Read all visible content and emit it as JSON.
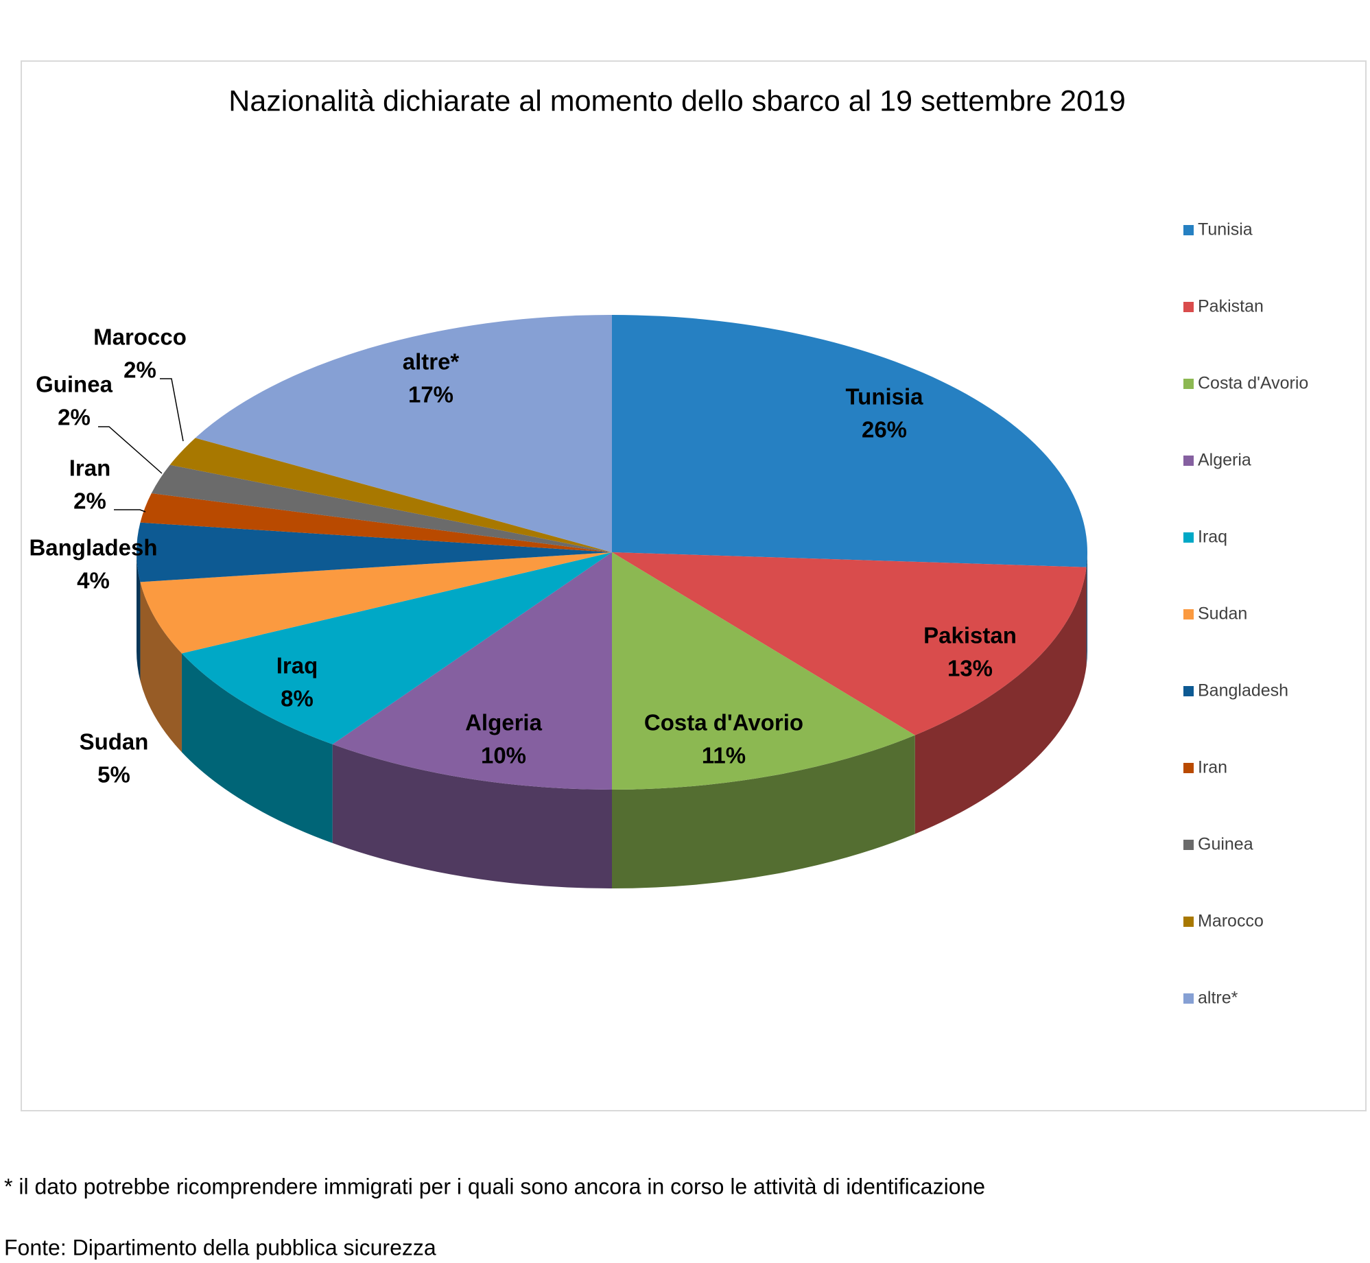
{
  "chart_data": {
    "type": "pie3d",
    "title": "Nazionalità dichiarate al momento dello sbarco al 19 settembre 2019",
    "categories": [
      "Tunisia",
      "Pakistan",
      "Costa d'Avorio",
      "Algeria",
      "Iraq",
      "Sudan",
      "Bangladesh",
      "Iran",
      "Guinea",
      "Marocco",
      "altre*"
    ],
    "values": [
      26,
      13,
      11,
      10,
      8,
      5,
      4,
      2,
      2,
      2,
      17
    ],
    "value_labels": [
      "26%",
      "13%",
      "11%",
      "10%",
      "8%",
      "5%",
      "4%",
      "2%",
      "2%",
      "2%",
      "17%"
    ],
    "colors": [
      "#2680c2",
      "#d94c4c",
      "#8cb852",
      "#8560a0",
      "#00a8c6",
      "#fb9a40",
      "#0d5a93",
      "#b94a00",
      "#6b6b6b",
      "#a87800",
      "#86a0d4"
    ],
    "legend": "right",
    "note": "* il dato potrebbe ricomprendere immigrati per i quali sono ancora in corso le attività di identificazione",
    "source": "Fonte: Dipartimento della pubblica sicurezza"
  }
}
